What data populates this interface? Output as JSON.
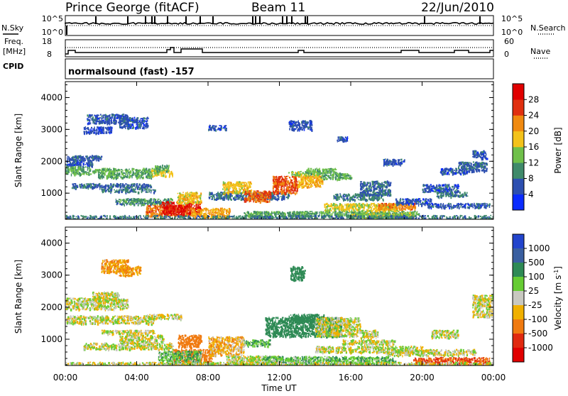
{
  "header": {
    "station": "Prince George (fitACF)",
    "beam": "Beam 11",
    "date": "22/Jun/2010"
  },
  "noise_panel": {
    "left_label": "N.Sky",
    "right_label": "N.Search",
    "left_ticks": [
      "10^5",
      "10^0"
    ],
    "right_ticks": [
      "10^5",
      "10^0"
    ]
  },
  "freq_panel": {
    "left_label": "Freq.",
    "left_unit": "[MHz]",
    "left_ticks": [
      "18",
      "8"
    ],
    "right_label": "Nave",
    "right_ticks": [
      "60",
      "0"
    ]
  },
  "cpid": {
    "label": "CPID",
    "program": "normalsound (fast) -157"
  },
  "x_axis": {
    "label": "Time UT",
    "ticks": [
      "00:00",
      "04:00",
      "08:00",
      "12:00",
      "16:00",
      "20:00",
      "00:00"
    ]
  },
  "y_axis": {
    "label": "Slant Range [km]",
    "ticks": [
      "1000",
      "2000",
      "3000",
      "4000"
    ]
  },
  "power_colorbar": {
    "label": "Power [dB]",
    "ticks": [
      "4",
      "8",
      "12",
      "16",
      "20",
      "24",
      "28"
    ],
    "colors": [
      "#0a2bff",
      "#2d4fb0",
      "#3f8a6a",
      "#6fc04a",
      "#f3c21a",
      "#f08a10",
      "#e03010",
      "#e00000"
    ]
  },
  "velocity_colorbar": {
    "label": "Velocity [m s",
    "label_sup": "-1",
    "label_end": "]",
    "ticks": [
      "1000",
      "500",
      "100",
      "25",
      "-25",
      "-100",
      "-500",
      "-1000"
    ],
    "colors": [
      "#2244cc",
      "#3a5fa0",
      "#2e8a55",
      "#66cc33",
      "#c8c8c0",
      "#f0b000",
      "#f07a10",
      "#e02a10",
      "#e00000"
    ]
  },
  "chart_data": [
    {
      "type": "heatmap",
      "title": "Power",
      "xlabel": "Time UT",
      "ylabel": "Slant Range [km]",
      "xlim": [
        0,
        24
      ],
      "ylim": [
        180,
        4500
      ],
      "zlabel": "Power [dB]",
      "zlim": [
        0,
        32
      ],
      "cells": [
        [
          1.2,
          3.5,
          3200,
          3500,
          6
        ],
        [
          3.0,
          4.6,
          3050,
          3400,
          6
        ],
        [
          1.0,
          2.6,
          2900,
          3100,
          5
        ],
        [
          0.0,
          2.0,
          2050,
          2200,
          7
        ],
        [
          0.0,
          1.5,
          1850,
          2050,
          6
        ],
        [
          0.0,
          1.4,
          1600,
          1850,
          12
        ],
        [
          1.5,
          5.2,
          1650,
          1800,
          13
        ],
        [
          1.8,
          4.8,
          1500,
          1650,
          12
        ],
        [
          4.8,
          6.0,
          1550,
          1750,
          17
        ],
        [
          5.0,
          5.8,
          1700,
          1900,
          12
        ],
        [
          0.3,
          4.8,
          1180,
          1320,
          7
        ],
        [
          2.0,
          5.0,
          1050,
          1150,
          8
        ],
        [
          2.8,
          6.0,
          650,
          850,
          10
        ],
        [
          4.5,
          7.0,
          300,
          650,
          23
        ],
        [
          5.4,
          7.6,
          350,
          750,
          29
        ],
        [
          7.0,
          9.2,
          250,
          550,
          21
        ],
        [
          6.2,
          7.6,
          700,
          1050,
          18
        ],
        [
          8.0,
          12.5,
          820,
          1050,
          8
        ],
        [
          8.8,
          10.4,
          1000,
          1380,
          18
        ],
        [
          10.0,
          11.5,
          750,
          1100,
          24
        ],
        [
          11.6,
          13.0,
          1000,
          1550,
          25
        ],
        [
          13.0,
          14.4,
          1200,
          1580,
          20
        ],
        [
          12.5,
          14.2,
          1580,
          1700,
          14
        ],
        [
          13.5,
          15.2,
          1650,
          1800,
          13
        ],
        [
          14.3,
          16.0,
          1450,
          1650,
          12
        ],
        [
          15.0,
          17.8,
          800,
          1000,
          9
        ],
        [
          16.5,
          18.2,
          950,
          1400,
          7
        ],
        [
          17.8,
          19.0,
          1900,
          2100,
          6
        ],
        [
          10.0,
          19.8,
          280,
          450,
          12
        ],
        [
          14.5,
          18.6,
          450,
          700,
          17
        ],
        [
          17.5,
          19.6,
          500,
          700,
          22
        ],
        [
          16.0,
          19.5,
          180,
          400,
          15
        ],
        [
          18.5,
          20.5,
          650,
          850,
          6
        ],
        [
          20.0,
          22.0,
          1050,
          1300,
          6
        ],
        [
          20.8,
          22.5,
          900,
          1050,
          9
        ],
        [
          20.3,
          23.8,
          560,
          700,
          6
        ],
        [
          21.0,
          22.5,
          1620,
          1800,
          6
        ],
        [
          22.0,
          23.6,
          1700,
          2000,
          7
        ],
        [
          22.8,
          23.6,
          2100,
          2350,
          6
        ],
        [
          12.5,
          13.8,
          3000,
          3300,
          6
        ],
        [
          8.0,
          9.0,
          3000,
          3150,
          6
        ],
        [
          15.2,
          15.8,
          2650,
          2800,
          6
        ],
        [
          0.0,
          24.0,
          180,
          320,
          9
        ]
      ]
    },
    {
      "type": "heatmap",
      "title": "Velocity",
      "xlabel": "Time UT",
      "ylabel": "Slant Range [km]",
      "xlim": [
        0,
        24
      ],
      "ylim": [
        180,
        4500
      ],
      "zlabel": "Velocity [m s-1]",
      "zlim": [
        -1000,
        1000
      ],
      "cells": [
        [
          0.0,
          3.5,
          1950,
          2300,
          0
        ],
        [
          0.0,
          5.0,
          1500,
          1750,
          0
        ],
        [
          4.5,
          6.5,
          1650,
          1800,
          0
        ],
        [
          2.0,
          5.0,
          1180,
          1300,
          0
        ],
        [
          3.0,
          5.5,
          900,
          1150,
          0
        ],
        [
          1.0,
          6.0,
          700,
          900,
          0
        ],
        [
          2.0,
          3.5,
          3100,
          3500,
          -100
        ],
        [
          3.0,
          4.2,
          3000,
          3300,
          -100
        ],
        [
          1.5,
          3.0,
          2200,
          2500,
          0
        ],
        [
          6.3,
          7.6,
          750,
          1150,
          -200
        ],
        [
          6.0,
          8.2,
          300,
          700,
          -300
        ],
        [
          5.2,
          7.6,
          180,
          650,
          80
        ],
        [
          8.0,
          10.0,
          500,
          1100,
          -60
        ],
        [
          9.0,
          12.0,
          200,
          500,
          0
        ],
        [
          10.0,
          11.5,
          800,
          1000,
          80
        ],
        [
          11.2,
          15.5,
          1100,
          1700,
          400
        ],
        [
          12.5,
          14.5,
          1550,
          1800,
          200
        ],
        [
          14.0,
          16.5,
          1100,
          1700,
          0
        ],
        [
          15.5,
          18.5,
          850,
          1000,
          0
        ],
        [
          16.5,
          17.5,
          1050,
          1300,
          0
        ],
        [
          11.0,
          18.5,
          200,
          480,
          80
        ],
        [
          14.0,
          20.0,
          600,
          800,
          0
        ],
        [
          18.0,
          23.0,
          500,
          700,
          0
        ],
        [
          19.5,
          23.8,
          180,
          450,
          -500
        ],
        [
          22.8,
          23.9,
          1700,
          2400,
          0
        ],
        [
          20.5,
          22.0,
          1050,
          1300,
          0
        ],
        [
          12.6,
          13.4,
          2850,
          3300,
          300
        ],
        [
          0.0,
          24.0,
          180,
          300,
          0
        ]
      ]
    }
  ]
}
